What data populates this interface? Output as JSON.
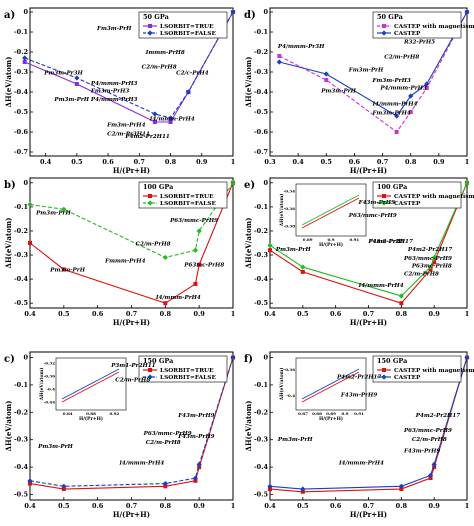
{
  "chart_data": [
    {
      "panel": "a)",
      "type": "line",
      "xlabel": "H/(Pr+H)",
      "ylabel": "ΔH(eV/atom)",
      "xlim": [
        0.35,
        1.0
      ],
      "ylim": [
        -0.72,
        0.02
      ],
      "xticks": [
        0.4,
        0.5,
        0.6,
        0.7,
        0.8,
        0.9,
        1.0
      ],
      "yticks": [
        0.0,
        -0.1,
        -0.2,
        -0.3,
        -0.4,
        -0.5,
        -0.6,
        -0.7
      ],
      "legend": {
        "title": "50 GPa",
        "position": "top-right"
      },
      "series": [
        {
          "name": "LSORBIT=TRUE",
          "color": "#8a2be2",
          "marker": "square",
          "dashed": false,
          "x": [
            0.333,
            0.5,
            0.75,
            0.8,
            0.857,
            1.0
          ],
          "y": [
            -0.25,
            -0.36,
            -0.55,
            -0.55,
            -0.4,
            0.0
          ]
        },
        {
          "name": "LSORBIT=FALSE",
          "color": "#1a3fbf",
          "marker": "diamond",
          "dashed": true,
          "x": [
            0.333,
            0.5,
            0.75,
            0.8,
            0.857,
            1.0
          ],
          "y": [
            -0.23,
            -0.33,
            -0.51,
            -0.53,
            -0.4,
            0.0
          ]
        }
      ],
      "annotations": [
        "Fm3m-PrH",
        "Pm3m-Pr3H",
        "Pm3m-PrH",
        "P4/mmm-PrH3",
        "Fm3m-PrH3",
        "P4/mmm-PrH3",
        "Immm-PrH8",
        "C2/m-PrH8",
        "C2/c-PrH4",
        "I4/mmm-PrH4",
        "Fm3m-PrH4",
        "C2/m-Pr3H11",
        "P4m2-Pr2H11"
      ]
    },
    {
      "panel": "b)",
      "type": "line",
      "xlabel": "H/(Pr+H)",
      "ylabel": "ΔH(eV/atom)",
      "xlim": [
        0.4,
        1.0
      ],
      "ylim": [
        -0.52,
        0.02
      ],
      "xticks": [
        0.4,
        0.5,
        0.6,
        0.7,
        0.8,
        0.9,
        1.0
      ],
      "yticks": [
        0.0,
        -0.1,
        -0.2,
        -0.3,
        -0.4,
        -0.5
      ],
      "legend": {
        "title": "100 GPa",
        "position": "top-right"
      },
      "series": [
        {
          "name": "LSORBIT=TRUE",
          "color": "#e01010",
          "marker": "square",
          "dashed": false,
          "x": [
            0.4,
            0.5,
            0.8,
            0.889,
            0.9,
            1.0
          ],
          "y": [
            -0.25,
            -0.36,
            -0.5,
            -0.42,
            -0.34,
            0.0
          ]
        },
        {
          "name": "LSORBIT=FALSE",
          "color": "#22bb22",
          "marker": "diamond",
          "dashed": true,
          "x": [
            0.4,
            0.5,
            0.8,
            0.889,
            0.9,
            1.0
          ],
          "y": [
            -0.09,
            -0.11,
            -0.31,
            -0.28,
            -0.2,
            0.0
          ]
        }
      ],
      "annotations": [
        "Pm3m-PrH",
        "Pm3m-PrH",
        "I4/mmm-PrH4",
        "C2/m-PrH8",
        "P63/mmc-PrH9",
        "Fmmm-PrH4",
        "P63mc-PrH8"
      ]
    },
    {
      "panel": "c)",
      "type": "line",
      "xlabel": "H/(Pr+H)",
      "ylabel": "ΔH(eV/atom)",
      "xlim": [
        0.4,
        1.0
      ],
      "ylim": [
        -0.52,
        0.02
      ],
      "xticks": [
        0.4,
        0.5,
        0.6,
        0.7,
        0.8,
        0.9,
        1.0
      ],
      "yticks": [
        0.0,
        -0.1,
        -0.2,
        -0.3,
        -0.4,
        -0.5
      ],
      "legend": {
        "title": "150 GPa",
        "position": "top-right"
      },
      "series": [
        {
          "name": "LSORBIT=TRUE",
          "color": "#e01010",
          "marker": "square",
          "dashed": false,
          "x": [
            0.4,
            0.5,
            0.8,
            0.889,
            0.9,
            1.0
          ],
          "y": [
            -0.46,
            -0.48,
            -0.47,
            -0.45,
            -0.4,
            0.0
          ]
        },
        {
          "name": "LSORBIT=FALSE",
          "color": "#1a3fbf",
          "marker": "diamond",
          "dashed": true,
          "x": [
            0.4,
            0.5,
            0.8,
            0.889,
            0.9,
            1.0
          ],
          "y": [
            -0.45,
            -0.47,
            -0.46,
            -0.44,
            -0.39,
            0.0
          ]
        }
      ],
      "inset": {
        "xlabel": "H/(Pr+H)",
        "ylabel": "ΔH(eV/atom)",
        "xticks": [
          0.84,
          0.88,
          0.92
        ],
        "yticks": [
          -0.32,
          -0.36,
          -0.4,
          -0.44
        ]
      },
      "annotations": [
        "Pm3m-PrH",
        "I4/mmm-PrH4",
        "C2/m-PrH8",
        "F43m-PrH9",
        "P63/mmc-PrH9",
        "P3m1-Pr2H11",
        "C2/m-PrH8",
        "F43m-PrH9"
      ]
    },
    {
      "panel": "d)",
      "type": "line",
      "xlabel": "H/(Pr+H)",
      "ylabel": "ΔH(eV/atom)",
      "xlim": [
        0.3,
        1.0
      ],
      "ylim": [
        -0.72,
        0.02
      ],
      "xticks": [
        0.3,
        0.4,
        0.5,
        0.6,
        0.7,
        0.8,
        0.9,
        1.0
      ],
      "yticks": [
        0.0,
        -0.1,
        -0.2,
        -0.3,
        -0.4,
        -0.5,
        -0.6,
        -0.7
      ],
      "legend": {
        "title": "50 GPa",
        "position": "top-right"
      },
      "series": [
        {
          "name": "CASTEP with magnetism",
          "color": "#cc33cc",
          "marker": "square",
          "dashed": true,
          "x": [
            0.333,
            0.5,
            0.75,
            0.8,
            0.857,
            1.0
          ],
          "y": [
            -0.22,
            -0.34,
            -0.6,
            -0.5,
            -0.38,
            0.0
          ]
        },
        {
          "name": "CASTEP",
          "color": "#1a3fbf",
          "marker": "diamond",
          "dashed": false,
          "x": [
            0.333,
            0.5,
            0.75,
            0.8,
            0.857,
            1.0
          ],
          "y": [
            -0.25,
            -0.31,
            -0.52,
            -0.42,
            -0.36,
            0.0
          ]
        }
      ],
      "annotations": [
        "P4/mmm-Pr3H",
        "R32-PrH5",
        "C2/m-PrH8",
        "Fm3m-PrH",
        "Pm3m-PrH",
        "Fm3m-PrH3",
        "P4/mmm-PrH3",
        "I4/mmm-PrH4",
        "Fm3m-PrH4"
      ]
    },
    {
      "panel": "e)",
      "type": "line",
      "xlabel": "H/(Pr+H)",
      "ylabel": "ΔH(eV/atom)",
      "xlim": [
        0.4,
        1.0
      ],
      "ylim": [
        -0.52,
        0.02
      ],
      "xticks": [
        0.4,
        0.5,
        0.6,
        0.7,
        0.8,
        0.9,
        1.0
      ],
      "yticks": [
        0.0,
        -0.1,
        -0.2,
        -0.3,
        -0.4,
        -0.5
      ],
      "legend": {
        "title": "100 GPa",
        "position": "top-right"
      },
      "series": [
        {
          "name": "CASTEP with magnetism",
          "color": "#e01010",
          "marker": "square",
          "dashed": false,
          "x": [
            0.4,
            0.5,
            0.8,
            0.889,
            0.9,
            1.0
          ],
          "y": [
            -0.28,
            -0.37,
            -0.5,
            -0.36,
            -0.33,
            0.0
          ]
        },
        {
          "name": "CASTEP",
          "color": "#22bb22",
          "marker": "diamond",
          "dashed": false,
          "x": [
            0.4,
            0.5,
            0.8,
            0.889,
            0.9,
            1.0
          ],
          "y": [
            -0.26,
            -0.35,
            -0.47,
            -0.35,
            -0.31,
            0.0
          ]
        }
      ],
      "inset": {
        "xlabel": "H/(Pr+H)",
        "ylabel": "ΔH(eV/atom)",
        "xticks": [
          0.89,
          0.9,
          0.91
        ],
        "yticks": [
          -0.34,
          -0.36,
          -0.38
        ]
      },
      "annotations": [
        "Pm3m-PrH",
        "I4/mmm-PrH4",
        "P4m2-Pr2H17",
        "P63/mmc-PrH9",
        "P63mc-PrH8",
        "C2/m-PrH8",
        "F43m-PrH9",
        "P63/mmc-PrH9",
        "P4m2-Pr2H17",
        "F43m-PrH9"
      ]
    },
    {
      "panel": "f)",
      "type": "line",
      "xlabel": "H/(Pr+H)",
      "ylabel": "ΔH(eV/atom)",
      "xlim": [
        0.4,
        1.0
      ],
      "ylim": [
        -0.52,
        0.02
      ],
      "xticks": [
        0.4,
        0.5,
        0.6,
        0.7,
        0.8,
        0.9,
        1.0
      ],
      "yticks": [
        0.0,
        -0.1,
        -0.2,
        -0.3,
        -0.4,
        -0.5
      ],
      "legend": {
        "title": "150 GPa",
        "position": "top-right"
      },
      "series": [
        {
          "name": "CASTEP with magnetism",
          "color": "#e01010",
          "marker": "square",
          "dashed": false,
          "x": [
            0.4,
            0.5,
            0.8,
            0.889,
            0.9,
            1.0
          ],
          "y": [
            -0.48,
            -0.49,
            -0.48,
            -0.44,
            -0.4,
            0.0
          ]
        },
        {
          "name": "CASTEP",
          "color": "#1a3fbf",
          "marker": "diamond",
          "dashed": false,
          "x": [
            0.4,
            0.5,
            0.8,
            0.889,
            0.9,
            1.0
          ],
          "y": [
            -0.47,
            -0.48,
            -0.47,
            -0.43,
            -0.39,
            0.0
          ]
        }
      ],
      "inset": {
        "xlabel": "H/(Pr+H)",
        "ylabel": "ΔH(eV/atom)",
        "xticks": [
          0.87,
          0.88,
          0.89,
          0.9,
          0.91
        ],
        "yticks": [
          -0.36,
          -0.4
        ]
      },
      "annotations": [
        "Pm3m-PrH",
        "I4/mmm-PrH4",
        "P4m2-Pr2H17",
        "P63/mmc-PrH9",
        "C2/m-PrH8",
        "F43m-PrH9",
        "P4m2-Pr2H17",
        "F43m-PrH9"
      ]
    }
  ]
}
